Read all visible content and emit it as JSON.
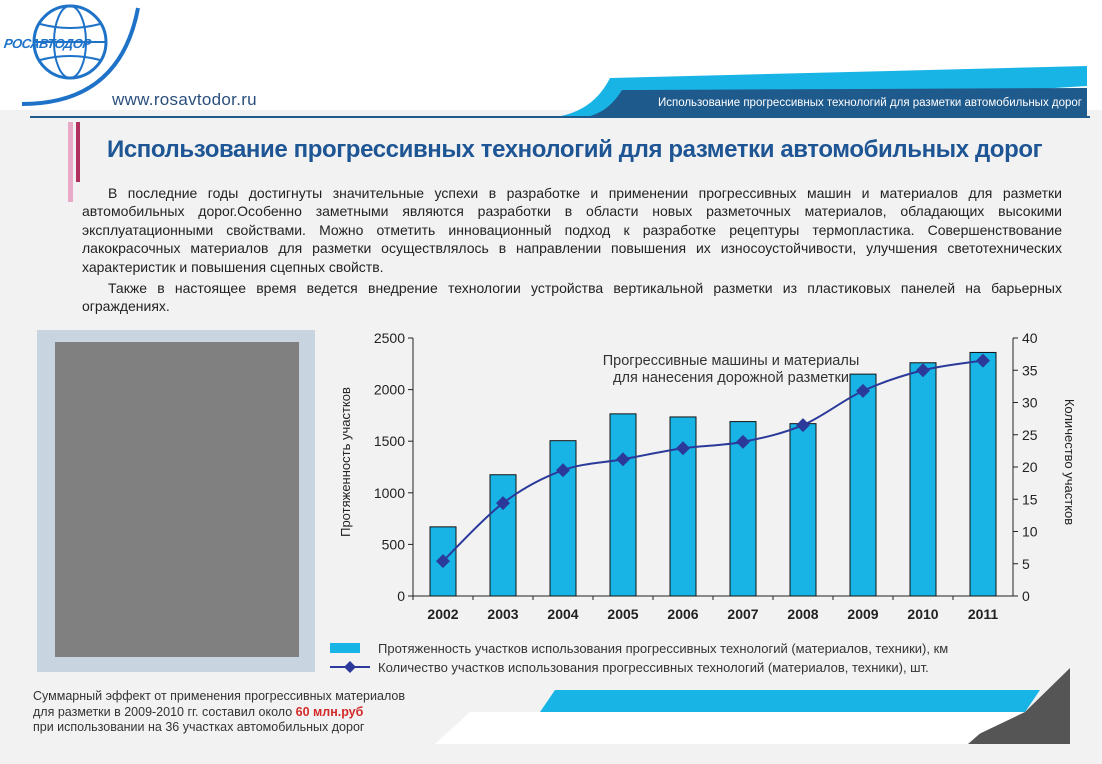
{
  "header": {
    "logo_text": "РОСАВТОДОР",
    "url": "www.rosavtodor.ru",
    "banner_text": "Использование прогрессивных технологий для разметки автомобильных дорог"
  },
  "title": "Использование прогрессивных технологий для разметки автомобильных дорог",
  "paragraphs": [
    "В последние годы достигнуты значительные успехи в разработке и применении прогрессивных машин и материалов для разметки автомобильных дорог.Особенно заметными являются разработки в области новых разметочных материалов, обладающих высокими эксплуатационными свойствами. Можно отметить инновационный подход к разработке рецептуры термопластика. Совершенствование лакокрасочных материалов для разметки осуществлялось в направлении повышения их износоустойчивости, улучшения светотехнических характеристик и повышения сцепных свойств.",
    "Также в настоящее время ведется внедрение технологии устройства вертикальной разметки из пластиковых панелей на барьерных ограждениях."
  ],
  "chart_data": {
    "type": "bar",
    "title_line1": "Прогрессивные машины и материалы",
    "title_line2": "для нанесения дорожной разметки",
    "categories": [
      "2002",
      "2003",
      "2004",
      "2005",
      "2006",
      "2007",
      "2008",
      "2009",
      "2010",
      "2011"
    ],
    "series": [
      {
        "name": "Протяженность участков использования прогрессивных технологий (материалов, техники), км",
        "type": "bar",
        "axis": "left",
        "color": "#19b4e6",
        "values": [
          670,
          1175,
          1505,
          1765,
          1735,
          1690,
          1670,
          2150,
          2260,
          2360
        ]
      },
      {
        "name": "Количество участков использования прогрессивных технологий (материалов, техники), шт.",
        "type": "line",
        "axis": "right",
        "color": "#2b3a9a",
        "values": [
          5.4,
          14.4,
          19.5,
          21.2,
          22.9,
          23.9,
          26.5,
          31.8,
          35.0,
          36.5
        ]
      }
    ],
    "ylabel": "Протяженность участков",
    "y2label": "Количество участков",
    "ylim": [
      0,
      2500
    ],
    "y2lim": [
      0,
      40
    ],
    "yticks": [
      "0",
      "500",
      "1000",
      "1500",
      "2000",
      "2500"
    ],
    "y2ticks": [
      "0",
      "5",
      "10",
      "15",
      "20",
      "25",
      "30",
      "35",
      "40"
    ]
  },
  "legend": {
    "bar_label": "Протяженность участков использования прогрессивных технологий (материалов, техники), км",
    "line_label": "Количество участков использования прогрессивных технологий (материалов, техники), шт."
  },
  "note": {
    "line1": "Суммарный эффект от применения прогрессивных материалов",
    "line2_prefix": "для разметки в 2009-2010 гг. составил около ",
    "line2_highlight": "60 млн.руб",
    "line3": "при использовании на 36 участках автомобильных дорог"
  },
  "colors": {
    "accent_blue": "#19b4e6",
    "title_blue": "#1e5594",
    "line_navy": "#2b3a9a",
    "highlight_red": "#d32a2a"
  }
}
